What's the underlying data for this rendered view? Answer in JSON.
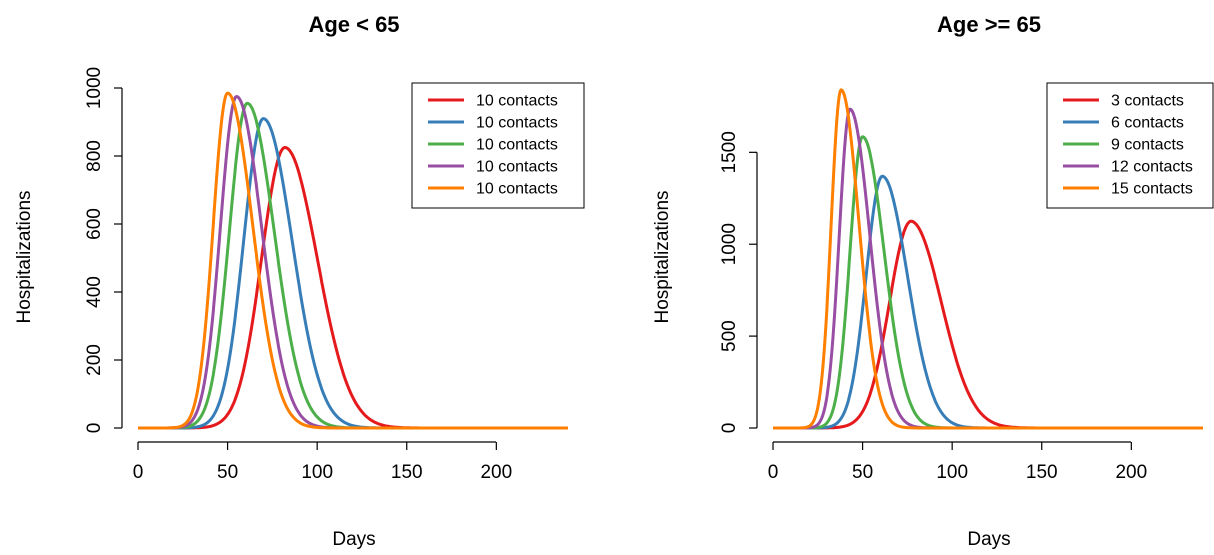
{
  "chart_data": [
    {
      "type": "line",
      "title": "Age < 65",
      "xlabel": "Days",
      "ylabel": "Hospitalizations",
      "xlim": [
        0,
        240
      ],
      "ylim": [
        0,
        1000
      ],
      "xticks": [
        "0",
        "50",
        "100",
        "150",
        "200"
      ],
      "yticks": [
        "0",
        "200",
        "400",
        "600",
        "800",
        "1000"
      ],
      "grid": false,
      "legend_position": "top-right",
      "series": [
        {
          "name": "10 contacts",
          "color": "#E41A1C",
          "peak_x": 82,
          "peak_y": 825,
          "rise_width": 13,
          "fall_width": 18
        },
        {
          "name": "10 contacts",
          "color": "#377EB8",
          "peak_x": 70,
          "peak_y": 910,
          "rise_width": 11,
          "fall_width": 16
        },
        {
          "name": "10 contacts",
          "color": "#4DAF4A",
          "peak_x": 61,
          "peak_y": 955,
          "rise_width": 10,
          "fall_width": 15
        },
        {
          "name": "10 contacts",
          "color": "#984EA3",
          "peak_x": 55,
          "peak_y": 975,
          "rise_width": 9,
          "fall_width": 14
        },
        {
          "name": "10 contacts",
          "color": "#FF7F00",
          "peak_x": 50,
          "peak_y": 985,
          "rise_width": 8,
          "fall_width": 14
        }
      ]
    },
    {
      "type": "line",
      "title": "Age >= 65",
      "xlabel": "Days",
      "ylabel": "Hospitalizations",
      "xlim": [
        0,
        240
      ],
      "ylim": [
        0,
        1850
      ],
      "xticks": [
        "0",
        "50",
        "100",
        "150",
        "200"
      ],
      "yticks": [
        "0",
        "500",
        "1000",
        "1500"
      ],
      "grid": false,
      "legend_position": "top-right",
      "series": [
        {
          "name": "3 contacts",
          "color": "#E41A1C",
          "peak_x": 77,
          "peak_y": 1125,
          "rise_width": 12,
          "fall_width": 17
        },
        {
          "name": "6 contacts",
          "color": "#377EB8",
          "peak_x": 61,
          "peak_y": 1370,
          "rise_width": 9,
          "fall_width": 14
        },
        {
          "name": "9 contacts",
          "color": "#4DAF4A",
          "peak_x": 50,
          "peak_y": 1585,
          "rise_width": 7,
          "fall_width": 12
        },
        {
          "name": "12 contacts",
          "color": "#984EA3",
          "peak_x": 43,
          "peak_y": 1735,
          "rise_width": 6,
          "fall_width": 11
        },
        {
          "name": "15 contacts",
          "color": "#FF7F00",
          "peak_x": 38,
          "peak_y": 1840,
          "rise_width": 5.5,
          "fall_width": 10
        }
      ]
    }
  ]
}
